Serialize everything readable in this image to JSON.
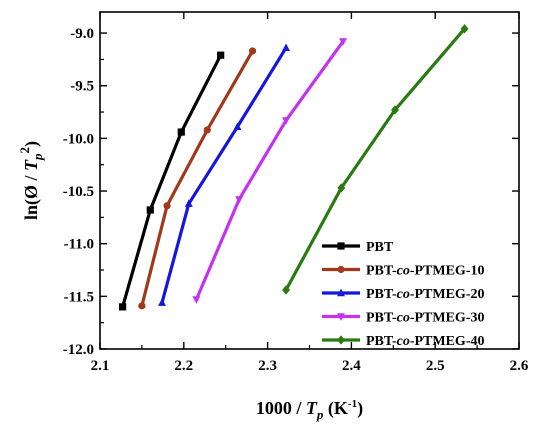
{
  "chart_data": {
    "type": "line",
    "xlabel": {
      "prefix": "1000 / ",
      "var": "T",
      "sub": "p",
      "unit_pre": " (K",
      "unit_sup": "-1",
      "unit_post": ")"
    },
    "ylabel": {
      "pre": "ln(Ø / ",
      "var": "T",
      "sub": "p",
      "sup": "2",
      "post": ")"
    },
    "xlim": [
      2.1,
      2.6
    ],
    "ylim": [
      -12.0,
      -8.8
    ],
    "xticks": [
      "2.1",
      "2.2",
      "2.3",
      "2.4",
      "2.5",
      "2.6"
    ],
    "yticks": [
      "-9.0",
      "-9.5",
      "-10.0",
      "-10.5",
      "-11.0",
      "-11.5",
      "-12.0"
    ],
    "legend_position": "bottom-right",
    "series": [
      {
        "name": "PBT",
        "name_parts": [
          {
            "t": "PBT",
            "i": false
          }
        ],
        "color": "#000000",
        "marker": "square",
        "x": [
          2.127,
          2.16,
          2.197,
          2.244
        ],
        "y": [
          -11.6,
          -10.68,
          -9.94,
          -9.21
        ]
      },
      {
        "name": "PBT-co-PTMEG-10",
        "name_parts": [
          {
            "t": "PBT-",
            "i": false
          },
          {
            "t": "co",
            "i": true
          },
          {
            "t": "-PTMEG-10",
            "i": false
          }
        ],
        "color": "#a0391c",
        "marker": "circle",
        "x": [
          2.15,
          2.18,
          2.228,
          2.282
        ],
        "y": [
          -11.59,
          -10.64,
          -9.92,
          -9.17
        ]
      },
      {
        "name": "PBT-co-PTMEG-20",
        "name_parts": [
          {
            "t": "PBT-",
            "i": false
          },
          {
            "t": "co",
            "i": true
          },
          {
            "t": "-PTMEG-20",
            "i": false
          }
        ],
        "color": "#1515e0",
        "marker": "triangle-up",
        "x": [
          2.174,
          2.206,
          2.264,
          2.322
        ],
        "y": [
          -11.56,
          -10.62,
          -9.89,
          -9.14
        ]
      },
      {
        "name": "PBT-co-PTMEG-30",
        "name_parts": [
          {
            "t": "PBT-",
            "i": false
          },
          {
            "t": "co",
            "i": true
          },
          {
            "t": "-PTMEG-30",
            "i": false
          }
        ],
        "color": "#c431f2",
        "marker": "triangle-down",
        "x": [
          2.215,
          2.266,
          2.322,
          2.39
        ],
        "y": [
          -11.53,
          -10.58,
          -9.83,
          -9.08
        ]
      },
      {
        "name": "PBT-co-PTMEG-40",
        "name_parts": [
          {
            "t": "PBT-",
            "i": false
          },
          {
            "t": "co",
            "i": true
          },
          {
            "t": "-PTMEG-40",
            "i": false
          }
        ],
        "color": "#2a7a12",
        "marker": "diamond",
        "x": [
          2.322,
          2.388,
          2.452,
          2.535
        ],
        "y": [
          -11.44,
          -10.47,
          -9.73,
          -8.96
        ]
      }
    ]
  }
}
